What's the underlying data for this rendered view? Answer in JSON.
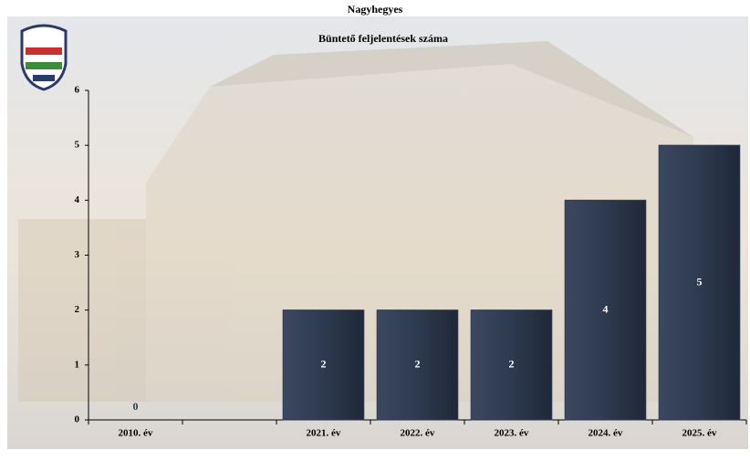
{
  "chart_data": {
    "type": "bar",
    "title": "Nagyhegyes",
    "subtitle": "Büntető feljelentések száma",
    "categories": [
      "2010. év",
      null,
      "2021. év",
      "2022. év",
      "2023. év",
      "2024. év",
      "2025. év"
    ],
    "values": [
      0,
      null,
      2,
      2,
      2,
      4,
      5
    ],
    "color": "#2e3a4f",
    "ylim": [
      0,
      6
    ],
    "yticks": [
      0,
      1,
      2,
      3,
      4,
      5,
      6
    ]
  }
}
